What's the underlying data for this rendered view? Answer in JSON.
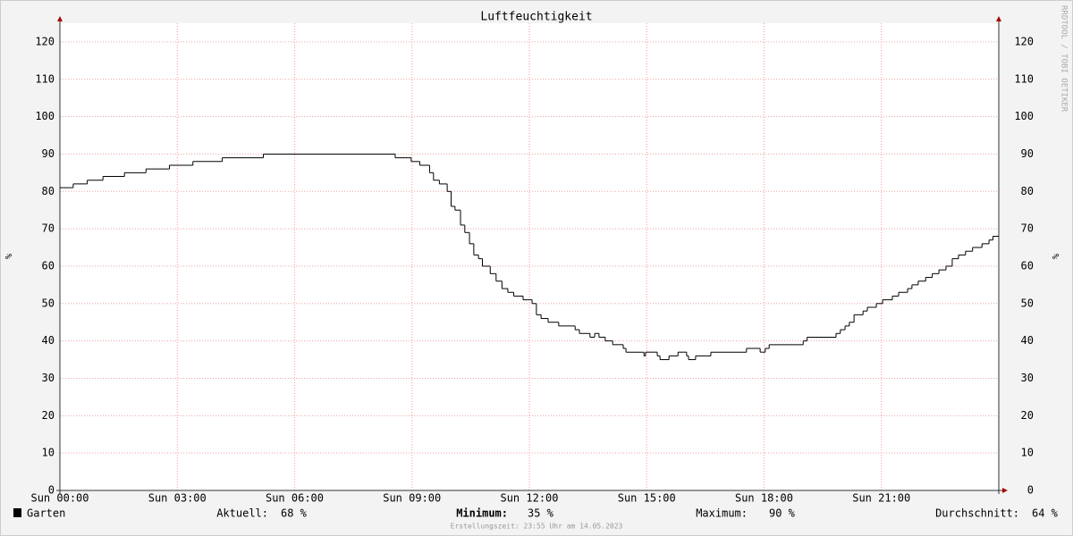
{
  "chart_data": {
    "type": "line",
    "title": "Luftfeuchtigkeit",
    "y_label": "%",
    "watermark": "RRDTOOL / TOBI OETIKER",
    "xlim": [
      0,
      24
    ],
    "ylim": [
      0,
      125
    ],
    "xticks": [
      {
        "value": 0,
        "label": "Sun 00:00"
      },
      {
        "value": 3,
        "label": "Sun 03:00"
      },
      {
        "value": 6,
        "label": "Sun 06:00"
      },
      {
        "value": 9,
        "label": "Sun 09:00"
      },
      {
        "value": 12,
        "label": "Sun 12:00"
      },
      {
        "value": 15,
        "label": "Sun 15:00"
      },
      {
        "value": 18,
        "label": "Sun 18:00"
      },
      {
        "value": 21,
        "label": "Sun 21:00"
      }
    ],
    "yticks": [
      0,
      10,
      20,
      30,
      40,
      50,
      60,
      70,
      80,
      90,
      100,
      110,
      120
    ],
    "grid": true,
    "step": true,
    "series": [
      {
        "name": "Garten",
        "color": "#000000",
        "x": [
          0,
          0.34,
          0.7,
          1.1,
          1.65,
          2.2,
          2.8,
          3.4,
          4.15,
          5.2,
          8.57,
          8.98,
          9.2,
          9.45,
          9.55,
          9.7,
          9.9,
          10.0,
          10.1,
          10.24,
          10.35,
          10.47,
          10.58,
          10.7,
          10.8,
          11.0,
          11.15,
          11.3,
          11.45,
          11.6,
          11.84,
          12.07,
          12.18,
          12.3,
          12.48,
          12.75,
          13.17,
          13.28,
          13.55,
          13.67,
          13.78,
          13.94,
          14.13,
          14.4,
          14.47,
          14.93,
          14.97,
          15.27,
          15.34,
          15.57,
          15.8,
          16.02,
          16.07,
          16.25,
          16.64,
          17.55,
          17.9,
          18.03,
          18.13,
          19.0,
          19.1,
          19.84,
          19.95,
          20.07,
          20.18,
          20.3,
          20.53,
          20.64,
          20.87,
          21.03,
          21.28,
          21.44,
          21.67,
          21.78,
          21.94,
          22.13,
          22.3,
          22.47,
          22.65,
          22.81,
          22.97,
          23.15,
          23.33,
          23.57,
          23.75,
          23.85
        ],
        "values": [
          81,
          82,
          83,
          84,
          85,
          86,
          87,
          88,
          89,
          90,
          89,
          88,
          87,
          85,
          83,
          82,
          80,
          76,
          75,
          71,
          69,
          66,
          63,
          62,
          60,
          58,
          56,
          54,
          53,
          52,
          51,
          50,
          47,
          46,
          45,
          44,
          43,
          42,
          41,
          42,
          41,
          40,
          39,
          38,
          37,
          36,
          37,
          36,
          35,
          36,
          37,
          36,
          35,
          36,
          37,
          38,
          37,
          38,
          39,
          40,
          41,
          42,
          43,
          44,
          45,
          47,
          48,
          49,
          50,
          51,
          52,
          53,
          54,
          55,
          56,
          57,
          58,
          59,
          60,
          62,
          63,
          64,
          65,
          66,
          67,
          68
        ]
      }
    ],
    "stats": [
      {
        "label": "Aktuell:",
        "value": "68 %"
      },
      {
        "label": "Minimum:",
        "value": "35 %"
      },
      {
        "label": "Maximum:",
        "value": "90 %"
      },
      {
        "label": "Durchschnitt:",
        "value": "64 %"
      }
    ],
    "footer": "Erstellungszeit: 23:55 Uhr am 14.05.2023"
  }
}
